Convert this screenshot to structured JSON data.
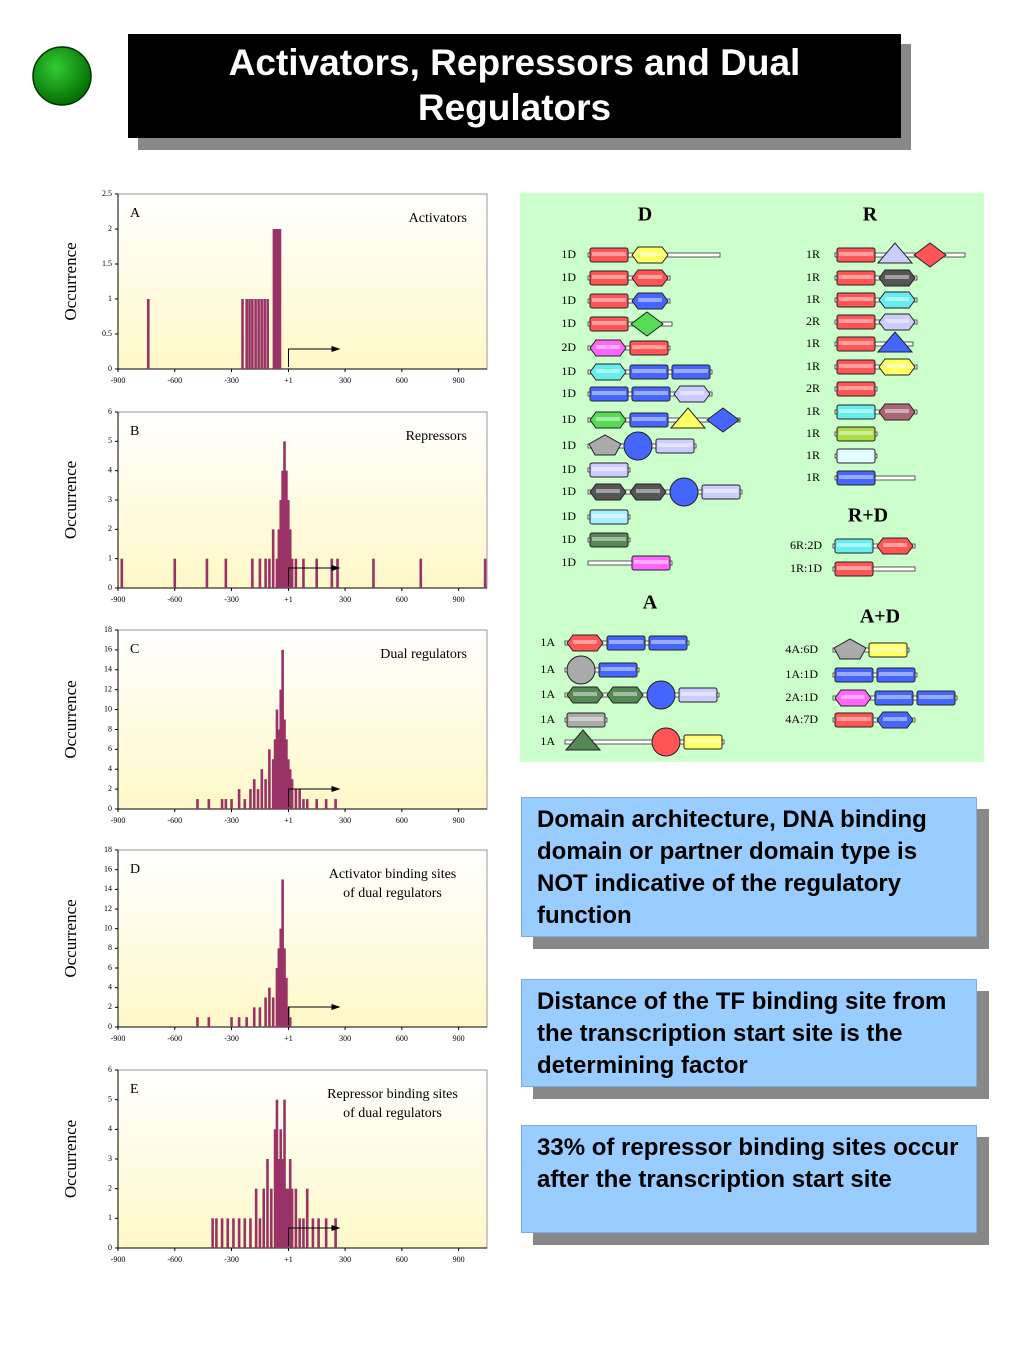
{
  "title": "Activators, Repressors and Dual Regulators",
  "chart_data": [
    {
      "type": "bar",
      "panel": "A",
      "title": [
        "Activators"
      ],
      "ylabel": "Occurrence",
      "color": "#993366",
      "x": [
        -740,
        -242,
        -220,
        -205,
        -190,
        -173,
        -157,
        -141,
        -125,
        -109,
        -76,
        -66,
        -55,
        -44
      ],
      "values": [
        1,
        1,
        1,
        1,
        1,
        1,
        1,
        1,
        1,
        1,
        2,
        2,
        2,
        2
      ],
      "xlim": [
        -900,
        1050
      ],
      "ylim": [
        0,
        2.5
      ],
      "xticks": [
        -900,
        -600,
        -300,
        {
          "value": 1,
          "label": "+1"
        },
        300,
        600,
        900
      ],
      "yticks": [
        0,
        0.5,
        1,
        1.5,
        2,
        2.5
      ]
    },
    {
      "type": "bar",
      "panel": "B",
      "title": [
        "Repressors"
      ],
      "ylabel": "Occurrence",
      "color": "#993366",
      "x": [
        -880,
        -600,
        -430,
        -330,
        -190,
        -150,
        -120,
        -100,
        -80,
        -60,
        -50,
        -40,
        -30,
        -20,
        -10,
        0,
        10,
        20,
        40,
        80,
        150,
        230,
        260,
        450,
        700,
        1040
      ],
      "values": [
        1,
        1,
        1,
        1,
        1,
        1,
        1,
        1,
        2,
        1,
        2,
        3,
        4,
        5,
        4,
        3,
        2,
        1,
        1,
        1,
        1,
        1,
        1,
        1,
        1,
        1
      ],
      "xlim": [
        -900,
        1050
      ],
      "ylim": [
        0,
        6
      ],
      "xticks": [
        -900,
        -600,
        -300,
        {
          "value": 1,
          "label": "+1"
        },
        300,
        600,
        900
      ],
      "yticks": [
        0,
        1,
        2,
        3,
        4,
        5,
        6
      ]
    },
    {
      "type": "bar",
      "panel": "C",
      "title": [
        "Dual regulators"
      ],
      "ylabel": "Occurrence",
      "color": "#993366",
      "x": [
        -480,
        -420,
        -350,
        -330,
        -300,
        -260,
        -230,
        -200,
        -180,
        -160,
        -140,
        -120,
        -100,
        -80,
        -70,
        -60,
        -50,
        -40,
        -30,
        -20,
        -10,
        0,
        10,
        20,
        40,
        60,
        80,
        100,
        150,
        200,
        250
      ],
      "values": [
        1,
        1,
        1,
        1,
        1,
        2,
        1,
        2,
        3,
        2,
        4,
        3,
        6,
        5,
        7,
        10,
        8,
        12,
        16,
        9,
        7,
        5,
        4,
        3,
        2,
        2,
        1,
        1,
        1,
        1,
        1
      ],
      "xlim": [
        -900,
        1050
      ],
      "ylim": [
        0,
        18
      ],
      "xticks": [
        -900,
        -600,
        -300,
        {
          "value": 1,
          "label": "+1"
        },
        300,
        600,
        900
      ],
      "yticks": [
        0,
        2,
        4,
        6,
        8,
        10,
        12,
        14,
        16,
        18
      ]
    },
    {
      "type": "bar",
      "panel": "D",
      "title": [
        "Activator binding sites",
        "of dual regulators"
      ],
      "ylabel": "Occurrence",
      "color": "#993366",
      "x": [
        -480,
        -420,
        -300,
        -260,
        -220,
        -180,
        -150,
        -120,
        -100,
        -80,
        -60,
        -50,
        -40,
        -30,
        -20,
        -10,
        0,
        10
      ],
      "values": [
        1,
        1,
        1,
        1,
        1,
        2,
        2,
        3,
        4,
        3,
        6,
        8,
        10,
        15,
        8,
        5,
        2,
        1
      ],
      "xlim": [
        -900,
        1050
      ],
      "ylim": [
        0,
        18
      ],
      "xticks": [
        -900,
        -600,
        -300,
        {
          "value": 1,
          "label": "+1"
        },
        300,
        600,
        900
      ],
      "yticks": [
        0,
        2,
        4,
        6,
        8,
        10,
        12,
        14,
        16,
        18
      ]
    },
    {
      "type": "bar",
      "panel": "E",
      "title": [
        "Repressor binding sites",
        "of dual regulators"
      ],
      "ylabel": "Occurrence",
      "color": "#993366",
      "x": [
        -400,
        -380,
        -350,
        -320,
        -290,
        -260,
        -230,
        -200,
        -170,
        -150,
        -130,
        -110,
        -90,
        -70,
        -60,
        -50,
        -40,
        -30,
        -20,
        -10,
        0,
        10,
        20,
        40,
        60,
        80,
        100,
        130,
        160,
        200,
        250
      ],
      "values": [
        1,
        1,
        1,
        1,
        1,
        1,
        1,
        1,
        2,
        1,
        2,
        3,
        2,
        4,
        5,
        3,
        4,
        3,
        5,
        2,
        2,
        3,
        2,
        2,
        1,
        1,
        2,
        1,
        1,
        1,
        1
      ],
      "xlim": [
        -900,
        1050
      ],
      "ylim": [
        0,
        6
      ],
      "xticks": [
        -900,
        -600,
        -300,
        {
          "value": 1,
          "label": "+1"
        },
        300,
        600,
        900
      ],
      "yticks": [
        0,
        1,
        2,
        3,
        4,
        5,
        6
      ]
    }
  ],
  "diagram": {
    "sections": [
      {
        "title": "D",
        "rows": [
          "1D",
          "1D",
          "1D",
          "1D",
          "2D",
          "1D",
          "1D",
          "1D",
          "1D",
          "1D",
          "1D",
          "1D",
          "1D",
          "1D"
        ]
      },
      {
        "title": "R",
        "rows": [
          "1R",
          "1R",
          "1R",
          "2R",
          "1R",
          "1R",
          "2R",
          "1R",
          "1R",
          "1R",
          "1R"
        ]
      },
      {
        "title": "R+D",
        "rows": [
          "6R:2D",
          "1R:1D"
        ]
      },
      {
        "title": "A",
        "rows": [
          "1A",
          "1A",
          "1A",
          "1A",
          "1A"
        ]
      },
      {
        "title": "A+D",
        "rows": [
          "4A:6D",
          "1A:1D",
          "2A:1D",
          "4A:7D"
        ]
      }
    ]
  },
  "notes": [
    "Domain architecture, DNA binding domain or partner domain type is NOT indicative of the regulatory function",
    "Distance of the TF binding site from the transcription start site is the determining factor",
    "33% of repressor binding sites occur after the transcription start site"
  ]
}
